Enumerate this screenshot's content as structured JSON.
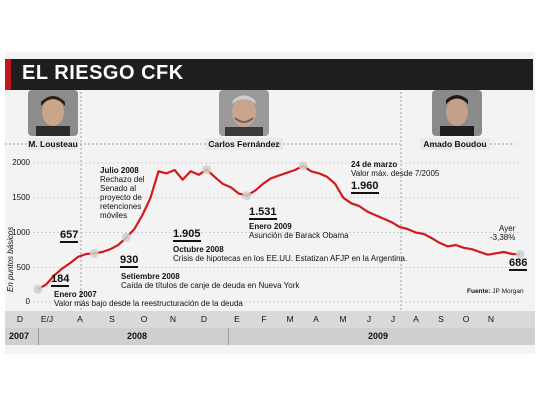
{
  "title": "EL RIESGO CFK",
  "people": [
    {
      "name": "M. Lousteau"
    },
    {
      "name": "Carlos Fernández"
    },
    {
      "name": "Amado Boudou"
    }
  ],
  "y_axis_title": "En puntos básicos",
  "y_ticks": [
    "2000",
    "1500",
    "1000",
    "500",
    "0"
  ],
  "source_label": "Fuente:",
  "source_text": "JP Morgan",
  "annotations": {
    "a184": {
      "value": "184",
      "title": "Enero 2007",
      "text": "Valor más bajo desde la reestructuración de la deuda"
    },
    "a657": {
      "value": "657",
      "title": "Julio 2008",
      "lines": [
        "Rechazo del",
        "Senado al",
        "proyecto de",
        "retenciones",
        "móviles"
      ]
    },
    "a930": {
      "value": "930",
      "title": "Setiembre 2008",
      "text": "Caída de títulos de canje de deuda en Nueva York"
    },
    "a1905": {
      "value": "1.905",
      "title": "Octubre 2008",
      "text": "Crisis de hipotecas en los EE.UU. Estatizan AFJP en la Argentina."
    },
    "a1531": {
      "value": "1.531",
      "title": "Enero 2009",
      "text": "Asunción de Barack Obama"
    },
    "a1960": {
      "value": "1.960",
      "title": "24 de marzo",
      "text": "Valor máx. desde 7/2005"
    },
    "a686": {
      "value": "686",
      "title": "Ayer",
      "text": "-3,38%"
    }
  },
  "months": [
    "D",
    "E/J",
    "A",
    "S",
    "O",
    "N",
    "D",
    "E",
    "F",
    "M",
    "A",
    "M",
    "J",
    "J",
    "A",
    "S",
    "O",
    "N"
  ],
  "years": [
    "2007",
    "2008",
    "2009"
  ],
  "colors": {
    "line": "#d11a1f",
    "title_band": "#1e1e1e",
    "accent": "#c0161c"
  },
  "chart_data": {
    "type": "line",
    "title": "EL RIESGO CFK",
    "ylabel": "En puntos básicos",
    "ylim": [
      0,
      2000
    ],
    "grid": true,
    "x_labels": [
      "D",
      "E/J",
      "A",
      "S",
      "O",
      "N",
      "D",
      "E",
      "F",
      "M",
      "A",
      "M",
      "J",
      "J",
      "A",
      "S",
      "O",
      "N"
    ],
    "series": [
      {
        "values": [
          184,
          250,
          380,
          480,
          560,
          650,
          690,
          700,
          720,
          760,
          820,
          930,
          1050,
          1250,
          1500,
          1880,
          1850,
          1900,
          1760,
          1880,
          1830,
          1905,
          1800,
          1700,
          1650,
          1560,
          1531,
          1600,
          1700,
          1780,
          1820,
          1860,
          1900,
          1960,
          1880,
          1850,
          1800,
          1700,
          1500,
          1420,
          1380,
          1300,
          1250,
          1200,
          1150,
          1080,
          1050,
          1000,
          980,
          920,
          850,
          800,
          820,
          780,
          760,
          720,
          680,
          700,
          720,
          690,
          686
        ]
      }
    ]
  }
}
